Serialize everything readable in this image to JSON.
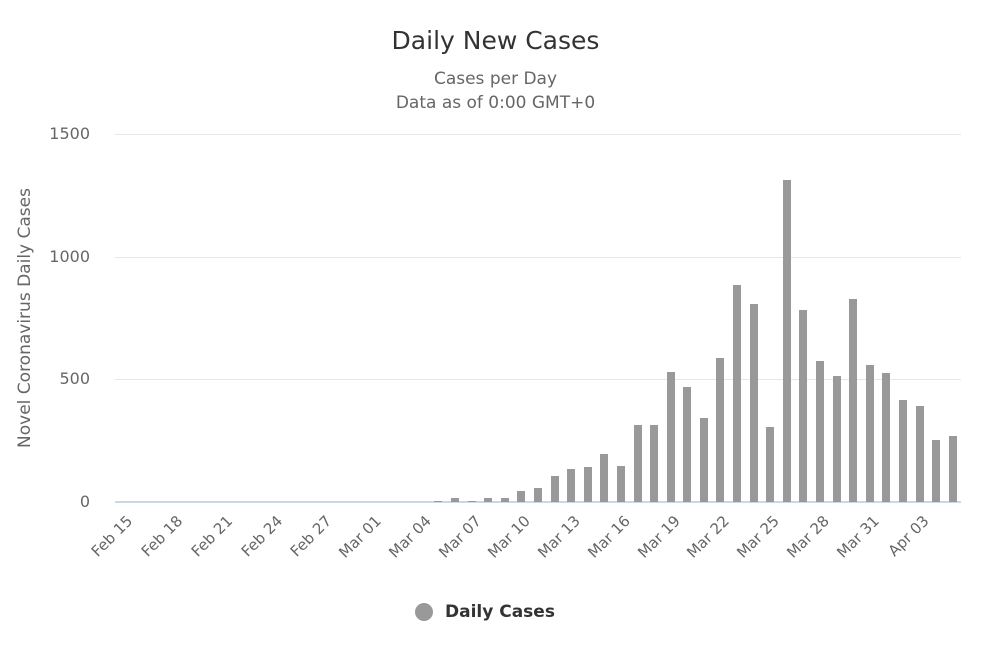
{
  "chart_data": {
    "type": "bar",
    "title": "Daily New Cases",
    "subtitle": [
      "Cases per Day",
      "Data as of 0:00 GMT+0"
    ],
    "xlabel": "",
    "ylabel": "Novel Coronavirus Daily Cases",
    "ylim": [
      0,
      1500
    ],
    "yticks": [
      0,
      500,
      1000,
      1500
    ],
    "grid": true,
    "legend_position": "bottom-center",
    "xtick_labels": [
      "Feb 15",
      "Feb 18",
      "Feb 21",
      "Feb 24",
      "Feb 27",
      "Mar 01",
      "Mar 04",
      "Mar 07",
      "Mar 10",
      "Mar 13",
      "Mar 16",
      "Mar 19",
      "Mar 22",
      "Mar 25",
      "Mar 28",
      "Mar 31",
      "Apr 03"
    ],
    "categories": [
      "Feb 15",
      "Feb 16",
      "Feb 17",
      "Feb 18",
      "Feb 19",
      "Feb 20",
      "Feb 21",
      "Feb 22",
      "Feb 23",
      "Feb 24",
      "Feb 25",
      "Feb 26",
      "Feb 27",
      "Feb 28",
      "Feb 29",
      "Mar 01",
      "Mar 02",
      "Mar 03",
      "Mar 04",
      "Mar 05",
      "Mar 06",
      "Mar 07",
      "Mar 08",
      "Mar 09",
      "Mar 10",
      "Mar 11",
      "Mar 12",
      "Mar 13",
      "Mar 14",
      "Mar 15",
      "Mar 16",
      "Mar 17",
      "Mar 18",
      "Mar 19",
      "Mar 20",
      "Mar 21",
      "Mar 22",
      "Mar 23",
      "Mar 24",
      "Mar 25",
      "Mar 26",
      "Mar 27",
      "Mar 28",
      "Mar 29",
      "Mar 30",
      "Mar 31",
      "Apr 01",
      "Apr 02",
      "Apr 03",
      "Apr 04",
      "Apr 05"
    ],
    "series": [
      {
        "name": "Daily Cases",
        "color": "#999999",
        "values": [
          0,
          0,
          0,
          0,
          0,
          0,
          0,
          0,
          0,
          0,
          0,
          0,
          0,
          0,
          0,
          0,
          1,
          1,
          2,
          5,
          17,
          5,
          17,
          17,
          43,
          57,
          108,
          134,
          141,
          194,
          148,
          314,
          314,
          529,
          469,
          341,
          586,
          884,
          807,
          307,
          1313,
          782,
          573,
          515,
          828,
          560,
          527,
          417,
          390,
          254,
          267
        ]
      }
    ]
  },
  "legend": {
    "label": "Daily Cases",
    "color": "#999999"
  }
}
